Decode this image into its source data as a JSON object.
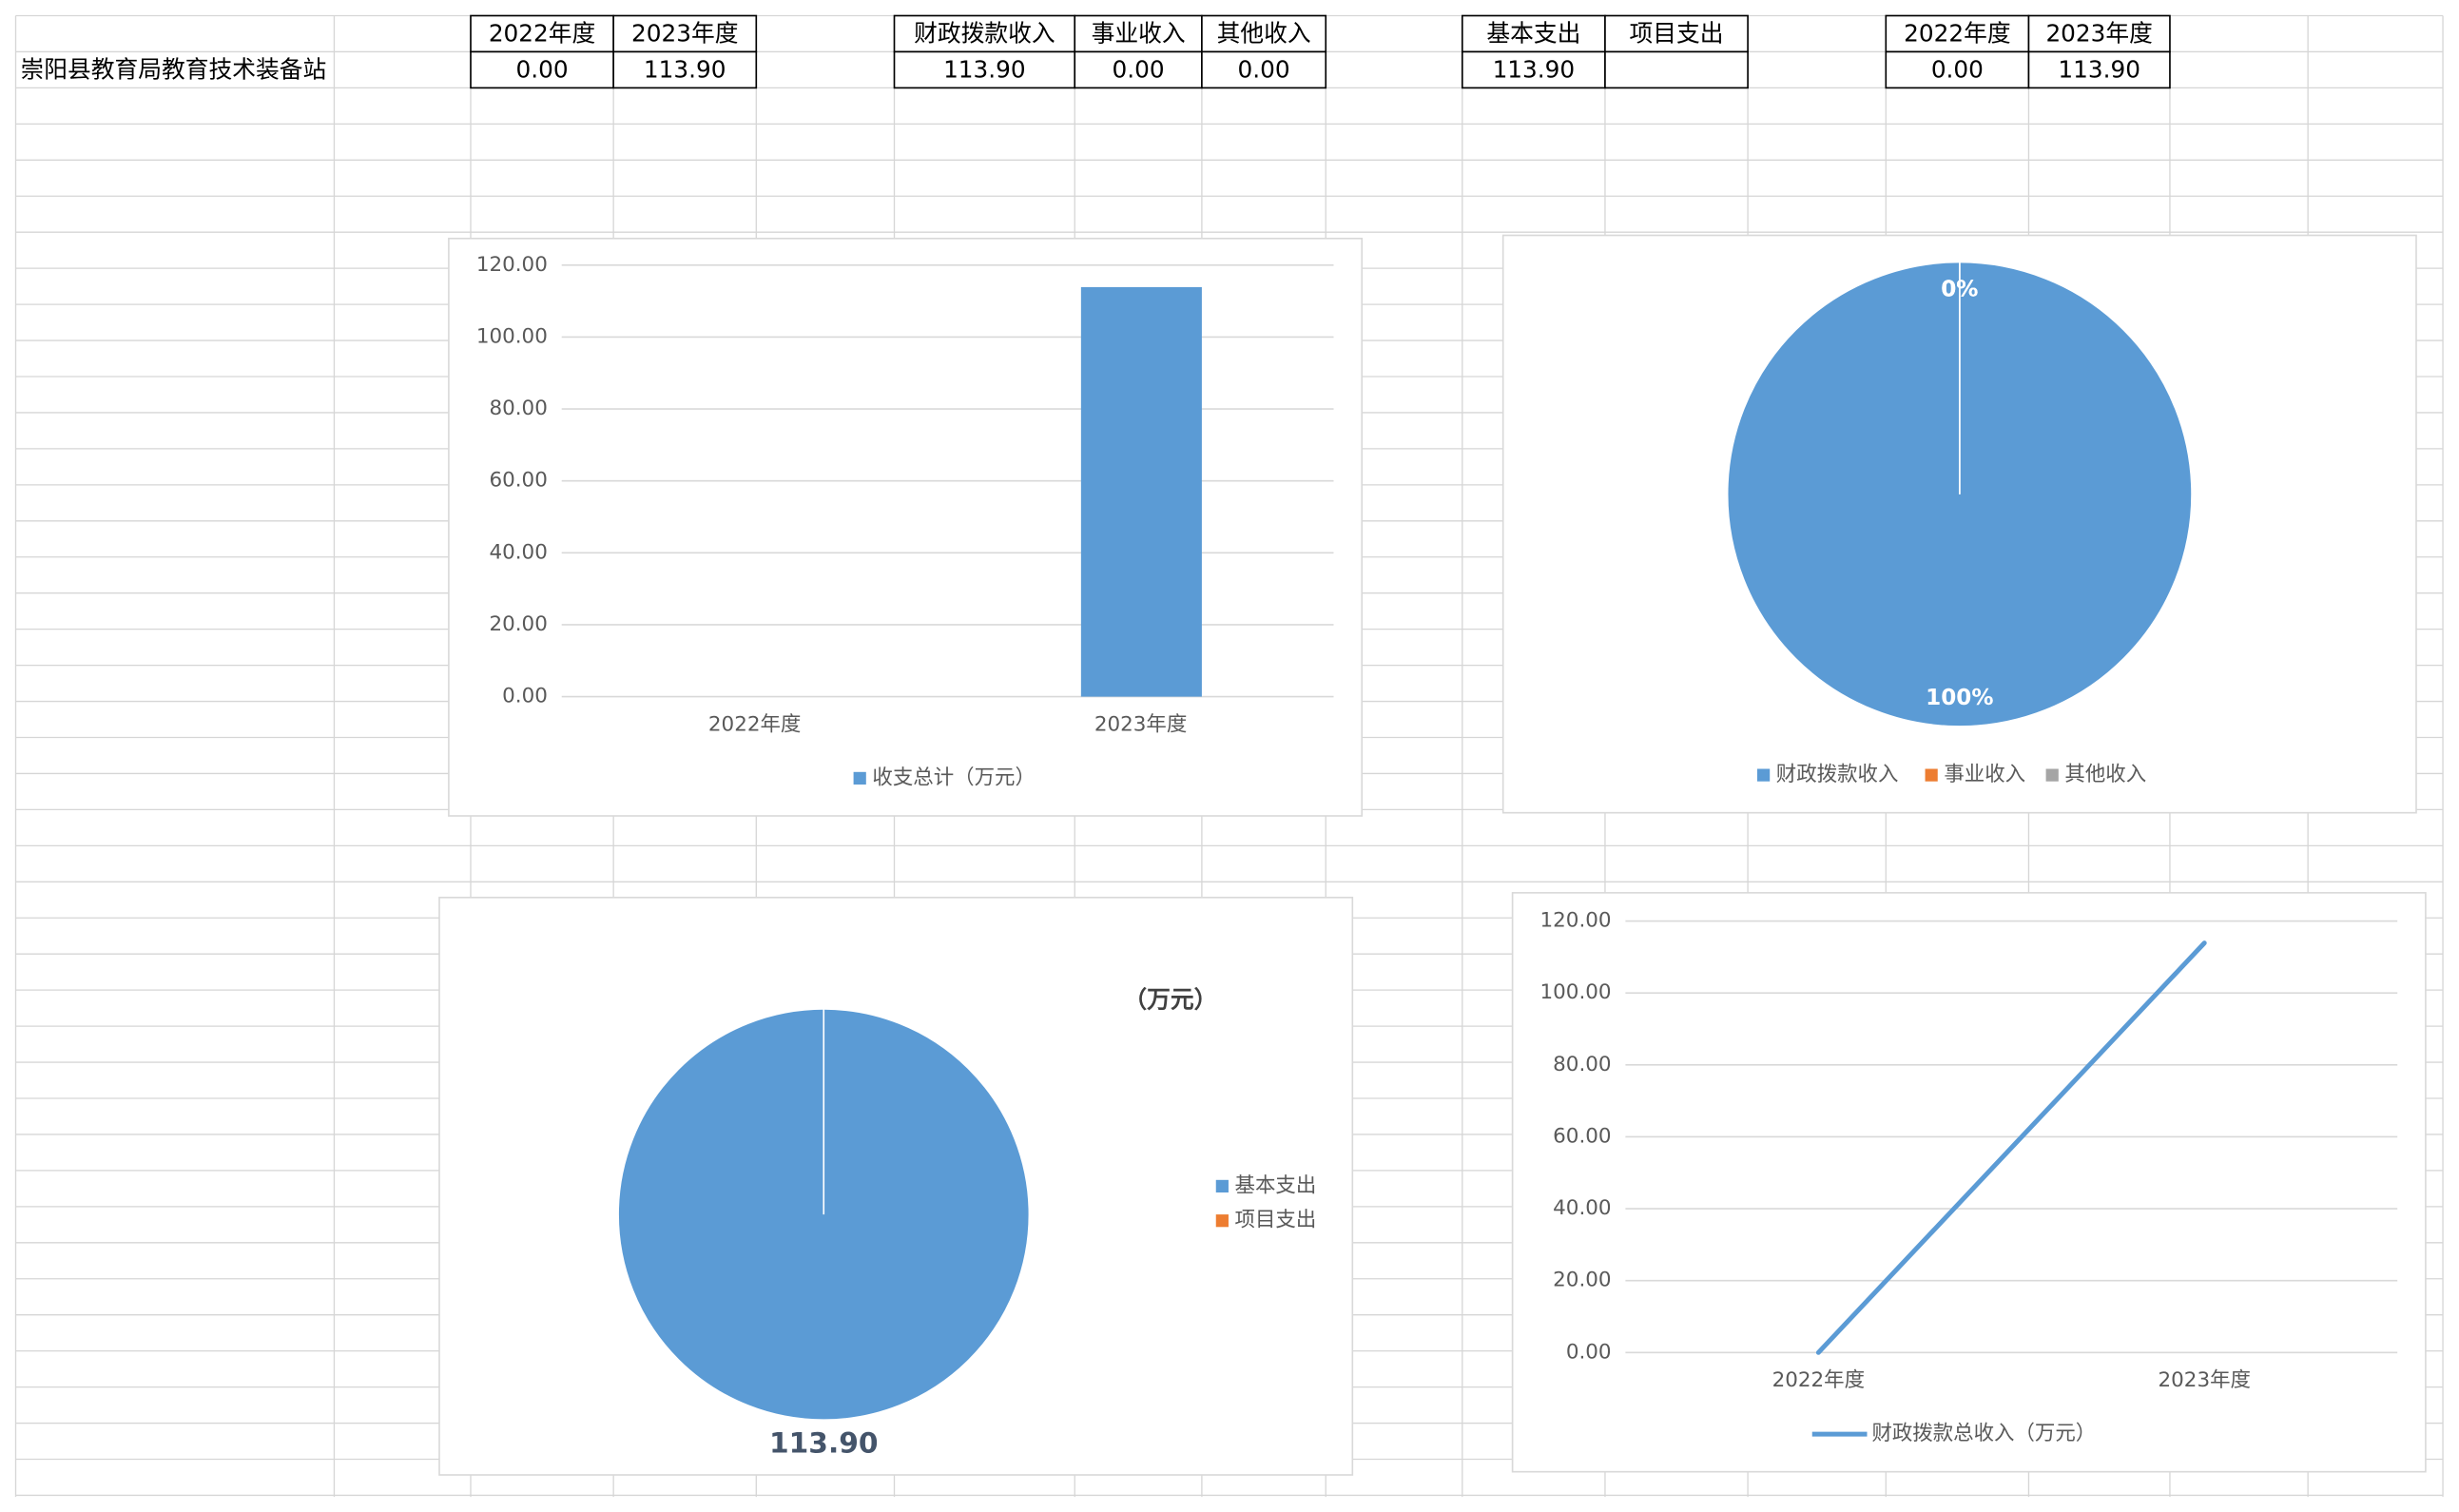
{
  "sheet": {
    "unit_name": "崇阳县教育局教育技术装备站",
    "tables": [
      {
        "header": [
          "2022年度",
          "2023年度"
        ],
        "row": [
          "0.00",
          "113.90"
        ]
      },
      {
        "header": [
          "财政拨款收入",
          "事业收入",
          "其他收入"
        ],
        "row": [
          "113.90",
          "0.00",
          "0.00"
        ]
      },
      {
        "header": [
          "基本支出",
          "项目支出"
        ],
        "row": [
          "113.90"
        ]
      },
      {
        "header": [
          "2022年度",
          "2023年度"
        ],
        "row": [
          "0.00",
          "113.90"
        ]
      }
    ]
  },
  "chart_data": [
    {
      "type": "bar",
      "categories": [
        "2022年度",
        "2023年度"
      ],
      "series": [
        {
          "name": "收支总计（万元）",
          "color": "#5b9bd5",
          "values": [
            0,
            113.9
          ]
        }
      ],
      "ylim": [
        0,
        120
      ],
      "yticks": [
        {
          "value": 0,
          "label": "0.00"
        },
        {
          "value": 20,
          "label": "20.00"
        },
        {
          "value": 40,
          "label": "40.00"
        },
        {
          "value": 60,
          "label": "60.00"
        },
        {
          "value": 80,
          "label": "80.00"
        },
        {
          "value": 100,
          "label": "100.00"
        },
        {
          "value": 120,
          "label": "120.00"
        }
      ],
      "grid": true,
      "legend": "bottom"
    },
    {
      "type": "pie",
      "categories": [
        "财政拨款收入",
        "事业收入",
        "其他收入"
      ],
      "values": [
        100,
        0,
        0
      ],
      "value_labels": [
        "100%",
        "0%",
        "0%"
      ],
      "colors": [
        "#5b9bd5",
        "#ed7d31",
        "#a5a5a5"
      ],
      "legend": "bottom"
    },
    {
      "type": "pie",
      "title": "（万元）",
      "categories": [
        "基本支出",
        "项目支出"
      ],
      "values": [
        113.9,
        0
      ],
      "value_labels": [
        "113.90",
        null
      ],
      "colors": [
        "#5b9bd5",
        "#ed7d31"
      ],
      "legend": "right"
    },
    {
      "type": "line",
      "categories": [
        "2022年度",
        "2023年度"
      ],
      "series": [
        {
          "name": "财政拨款总收入（万元）",
          "color": "#5b9bd5",
          "values": [
            0,
            113.9
          ]
        }
      ],
      "ylim": [
        0,
        120
      ],
      "yticks": [
        {
          "value": 0,
          "label": "0.00"
        },
        {
          "value": 20,
          "label": "20.00"
        },
        {
          "value": 40,
          "label": "40.00"
        },
        {
          "value": 60,
          "label": "60.00"
        },
        {
          "value": 80,
          "label": "80.00"
        },
        {
          "value": 100,
          "label": "100.00"
        },
        {
          "value": 120,
          "label": "120.00"
        }
      ],
      "grid": true,
      "legend": "bottom"
    }
  ]
}
